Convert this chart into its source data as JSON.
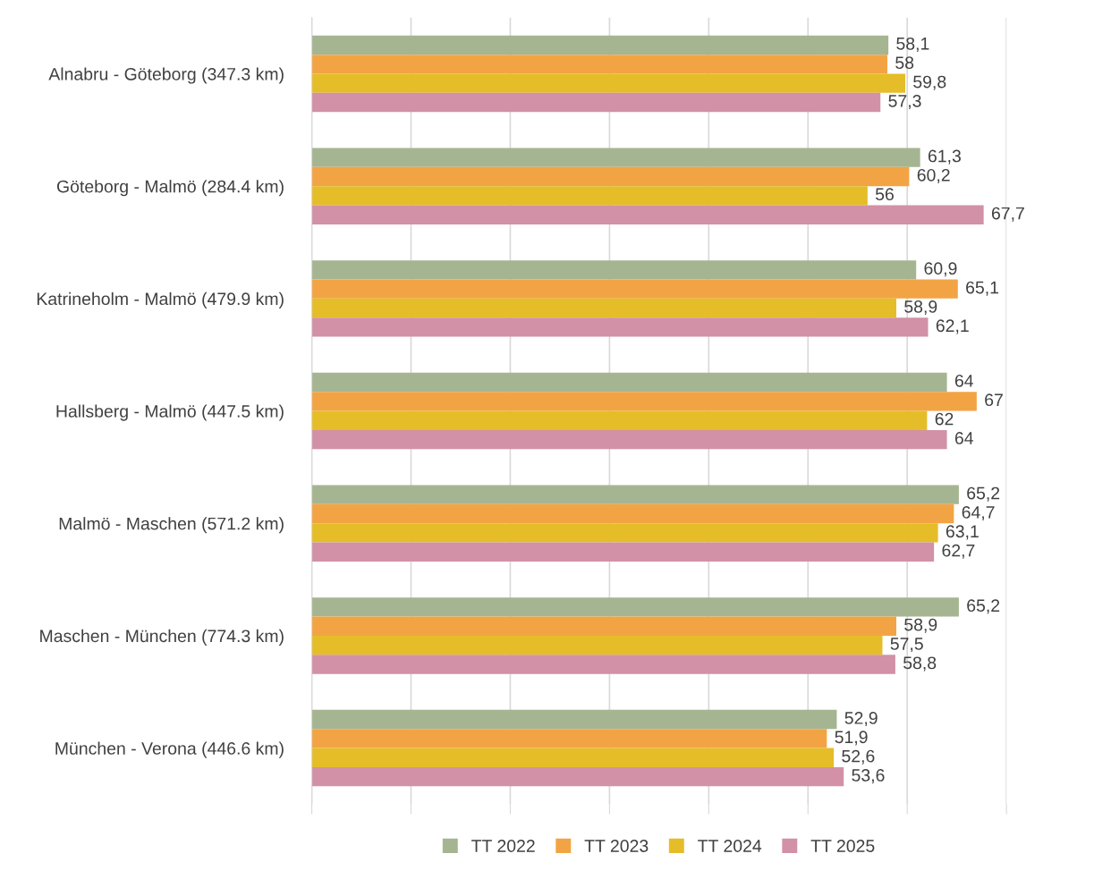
{
  "chart_data": {
    "type": "bar",
    "orientation": "horizontal",
    "categories": [
      "Alnabru - Göteborg (347.3 km)",
      "Göteborg - Malmö (284.4 km)",
      "Katrineholm - Malmö (479.9 km)",
      "Hallsberg - Malmö (447.5 km)",
      "Malmö - Maschen (571.2 km)",
      "Maschen - München (774.3 km)",
      "München - Verona (446.6 km)"
    ],
    "series": [
      {
        "name": "TT 2022",
        "color": "#a5b592",
        "values": [
          58.1,
          61.3,
          60.9,
          64,
          65.2,
          65.2,
          52.9
        ],
        "value_labels": [
          "58,1",
          "61,3",
          "60,9",
          "64",
          "65,2",
          "65,2",
          "52,9"
        ]
      },
      {
        "name": "TT 2023",
        "color": "#f2a444",
        "values": [
          58,
          60.2,
          65.1,
          67,
          64.7,
          58.9,
          51.9
        ],
        "value_labels": [
          "58",
          "60,2",
          "65,1",
          "67",
          "64,7",
          "58,9",
          "51,9"
        ]
      },
      {
        "name": "TT 2024",
        "color": "#e5bd28",
        "values": [
          59.8,
          56,
          58.9,
          62,
          63.1,
          57.5,
          52.6
        ],
        "value_labels": [
          "59,8",
          "56",
          "58,9",
          "62",
          "63,1",
          "57,5",
          "52,6"
        ]
      },
      {
        "name": "TT 2025",
        "color": "#d291a6",
        "values": [
          57.3,
          67.7,
          62.1,
          64,
          62.7,
          58.8,
          53.6
        ],
        "value_labels": [
          "57,3",
          "67,7",
          "62,1",
          "64",
          "62,7",
          "58,8",
          "53,6"
        ]
      }
    ],
    "xlim": [
      0,
      70
    ],
    "xticks": [
      {
        "value": 0,
        "label": null
      },
      {
        "value": 10,
        "label": null
      },
      {
        "value": 20,
        "label": null
      },
      {
        "value": 30,
        "label": null
      },
      {
        "value": 40,
        "label": null
      },
      {
        "value": 50,
        "label": null
      },
      {
        "value": 60,
        "label": null
      },
      {
        "value": 70,
        "label": null
      }
    ],
    "tick_labels": "y",
    "grid": "x",
    "legend": "bottom"
  }
}
